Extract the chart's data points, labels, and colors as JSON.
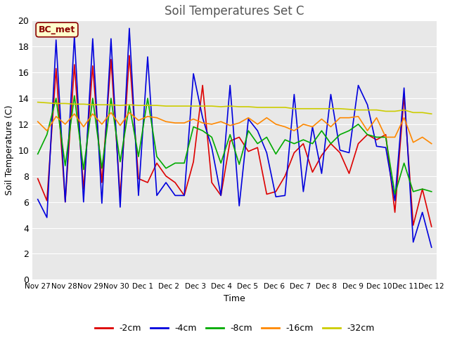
{
  "title": "Soil Temperatures Set C",
  "xlabel": "Time",
  "ylabel": "Soil Temperature (C)",
  "ylim": [
    0,
    20
  ],
  "yticks": [
    0,
    2,
    4,
    6,
    8,
    10,
    12,
    14,
    16,
    18,
    20
  ],
  "x_labels": [
    "Nov 27",
    "Nov 28",
    "Nov 29",
    "Nov 30",
    "Dec 1",
    "Dec 2",
    "Dec 3",
    "Dec 4",
    "Dec 5",
    "Dec 6",
    "Dec 7",
    "Dec 8",
    "Dec 9",
    "Dec 10",
    "Dec 11",
    "Dec 12"
  ],
  "annotation_text": "BC_met",
  "annotation_fg": "#8B0000",
  "annotation_bg": "#ffffcc",
  "annotation_edge": "#8B0000",
  "fig_bg": "#ffffff",
  "plot_bg": "#e8e8e8",
  "series": {
    "neg2cm": {
      "color": "#dd0000",
      "label": "-2cm",
      "values": [
        7.8,
        6.1,
        16.3,
        6.0,
        16.6,
        7.0,
        16.5,
        7.5,
        17.0,
        6.4,
        17.3,
        7.8,
        7.5,
        9.0,
        8.0,
        7.5,
        6.5,
        9.1,
        15.0,
        7.5,
        6.5,
        10.7,
        11.0,
        9.9,
        10.2,
        6.6,
        6.8,
        8.0,
        9.8,
        10.5,
        8.3,
        9.6,
        10.5,
        9.8,
        8.2,
        10.5,
        11.2,
        10.8,
        11.2,
        5.2,
        14.2,
        4.2,
        7.0,
        4.1
      ]
    },
    "neg4cm": {
      "color": "#0000dd",
      "label": "-4cm",
      "values": [
        6.2,
        4.8,
        18.5,
        6.0,
        18.8,
        6.0,
        18.6,
        5.9,
        18.6,
        5.6,
        19.4,
        6.5,
        17.2,
        6.5,
        7.5,
        6.5,
        6.5,
        15.9,
        12.5,
        10.2,
        6.5,
        15.0,
        5.7,
        12.4,
        11.5,
        9.8,
        6.4,
        6.5,
        14.3,
        6.8,
        11.8,
        8.2,
        14.3,
        10.0,
        9.8,
        15.0,
        13.5,
        10.3,
        10.2,
        6.1,
        14.8,
        2.9,
        5.2,
        2.5
      ]
    },
    "neg8cm": {
      "color": "#00aa00",
      "label": "-8cm",
      "values": [
        9.7,
        11.2,
        14.0,
        8.8,
        14.2,
        8.5,
        14.0,
        8.6,
        14.0,
        9.1,
        13.5,
        9.5,
        14.0,
        9.5,
        8.6,
        9.0,
        9.0,
        11.8,
        11.5,
        11.0,
        9.0,
        11.2,
        8.9,
        11.5,
        10.5,
        11.0,
        9.7,
        10.8,
        10.5,
        10.8,
        10.5,
        11.5,
        10.5,
        11.2,
        11.5,
        12.0,
        11.2,
        11.0,
        11.0,
        6.6,
        9.0,
        6.8,
        7.0,
        6.8
      ]
    },
    "neg16cm": {
      "color": "#ff8800",
      "label": "-16cm",
      "values": [
        12.2,
        11.5,
        12.6,
        12.0,
        12.8,
        11.8,
        12.8,
        12.0,
        12.9,
        11.9,
        12.9,
        12.3,
        12.6,
        12.5,
        12.2,
        12.1,
        12.1,
        12.4,
        12.1,
        12.0,
        12.2,
        11.9,
        12.1,
        12.5,
        12.0,
        12.5,
        12.0,
        11.8,
        11.5,
        12.0,
        11.8,
        12.4,
        11.8,
        12.5,
        12.5,
        12.6,
        11.5,
        12.5,
        11.0,
        11.0,
        12.5,
        10.6,
        11.0,
        10.5
      ]
    },
    "neg32cm": {
      "color": "#cccc00",
      "label": "-32cm",
      "values": [
        13.7,
        13.65,
        13.6,
        13.6,
        13.55,
        13.55,
        13.5,
        13.5,
        13.5,
        13.45,
        13.5,
        13.45,
        13.45,
        13.45,
        13.4,
        13.4,
        13.4,
        13.4,
        13.4,
        13.4,
        13.35,
        13.4,
        13.35,
        13.35,
        13.3,
        13.3,
        13.3,
        13.3,
        13.2,
        13.2,
        13.2,
        13.2,
        13.2,
        13.2,
        13.15,
        13.1,
        13.1,
        13.1,
        13.0,
        13.0,
        13.1,
        12.9,
        12.9,
        12.8
      ]
    }
  }
}
